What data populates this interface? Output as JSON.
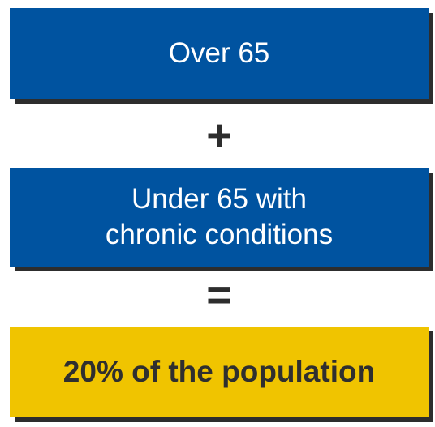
{
  "colors": {
    "blue_box": "#0053a0",
    "yellow_box": "#f0c400",
    "shadow": "#2d2d2d",
    "text_dark": "#2f2f2f"
  },
  "boxes": {
    "over_65": {
      "label": "Over 65"
    },
    "under_65": {
      "line1": "Under 65 with",
      "line2": "chronic conditions"
    },
    "result": {
      "label": "20% of the population"
    }
  },
  "operators": {
    "plus": "+",
    "equals": "="
  }
}
